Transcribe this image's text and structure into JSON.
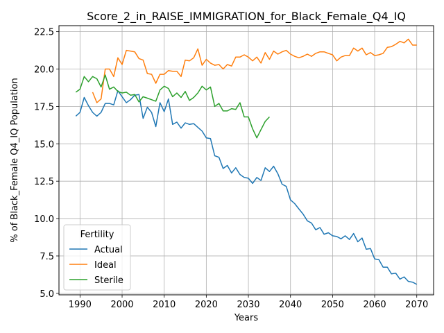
{
  "chart_data": {
    "type": "line",
    "title": "Score_2_in_RAISE_IMMIGRATION_for_Black_Female_Q4_IQ",
    "xlabel": "Years",
    "ylabel": "% of Black_Female Q4_IQ Population",
    "xlim": [
      1985,
      2074
    ],
    "ylim": [
      4.9,
      22.9
    ],
    "xticks": [
      1990,
      2000,
      2010,
      2020,
      2030,
      2040,
      2050,
      2060,
      2070
    ],
    "yticks": [
      5.0,
      7.5,
      10.0,
      12.5,
      15.0,
      17.5,
      20.0,
      22.5
    ],
    "ytick_labels": [
      "5.0",
      "7.5",
      "10.0",
      "12.5",
      "15.0",
      "17.5",
      "20.0",
      "22.5"
    ],
    "grid": true,
    "legend": {
      "title": "Fertility",
      "placement": "lower-left"
    },
    "series": [
      {
        "name": "Actual",
        "color": "#1f77b4",
        "x": [
          1989,
          1990,
          1991,
          1992,
          1993,
          1994,
          1995,
          1996,
          1997,
          1998,
          1999,
          2000,
          2001,
          2002,
          2003,
          2004,
          2005,
          2006,
          2007,
          2008,
          2009,
          2010,
          2011,
          2012,
          2013,
          2014,
          2015,
          2016,
          2017,
          2018,
          2019,
          2020,
          2021,
          2022,
          2023,
          2024,
          2025,
          2026,
          2027,
          2028,
          2029,
          2030,
          2031,
          2032,
          2033,
          2034,
          2035,
          2036,
          2037,
          2038,
          2039,
          2040,
          2041,
          2042,
          2043,
          2044,
          2045,
          2046,
          2047,
          2048,
          2049,
          2050,
          2051,
          2052,
          2053,
          2054,
          2055,
          2056,
          2057,
          2058,
          2059,
          2060,
          2061,
          2062,
          2063,
          2064,
          2065,
          2066,
          2067,
          2068,
          2069,
          2070
        ],
        "values": [
          16.85,
          17.1,
          18.1,
          17.55,
          17.1,
          16.85,
          17.1,
          17.7,
          17.7,
          17.6,
          18.55,
          18.15,
          17.75,
          17.95,
          18.25,
          18.3,
          16.7,
          17.45,
          17.1,
          16.15,
          17.75,
          17.15,
          18.0,
          16.3,
          16.45,
          16.05,
          16.4,
          16.3,
          16.35,
          16.1,
          15.85,
          15.4,
          15.35,
          14.2,
          14.1,
          13.35,
          13.55,
          13.05,
          13.4,
          12.95,
          12.75,
          12.7,
          12.35,
          12.75,
          12.55,
          13.4,
          13.15,
          13.5,
          13.0,
          12.3,
          12.15,
          11.25,
          11.0,
          10.65,
          10.3,
          9.85,
          9.7,
          9.25,
          9.4,
          8.95,
          9.05,
          8.85,
          8.8,
          8.65,
          8.85,
          8.6,
          9.0,
          8.45,
          8.7,
          7.95,
          8.0,
          7.3,
          7.25,
          6.75,
          6.75,
          6.3,
          6.35,
          5.95,
          6.1,
          5.8,
          5.75,
          5.6
        ]
      },
      {
        "name": "Ideal",
        "color": "#ff7f0e",
        "x": [
          1993,
          1994,
          1995,
          1996,
          1997,
          1998,
          1999,
          2000,
          2001,
          2002,
          2003,
          2004,
          2005,
          2006,
          2007,
          2008,
          2009,
          2010,
          2011,
          2012,
          2013,
          2014,
          2015,
          2016,
          2017,
          2018,
          2019,
          2020,
          2021,
          2022,
          2023,
          2024,
          2025,
          2026,
          2027,
          2028,
          2029,
          2030,
          2031,
          2032,
          2033,
          2034,
          2035,
          2036,
          2037,
          2038,
          2039,
          2040,
          2041,
          2042,
          2043,
          2044,
          2045,
          2046,
          2047,
          2048,
          2049,
          2050,
          2051,
          2052,
          2053,
          2054,
          2055,
          2056,
          2057,
          2058,
          2059,
          2060,
          2061,
          2062,
          2063,
          2064,
          2065,
          2066,
          2067,
          2068,
          2069,
          2070
        ],
        "values": [
          18.45,
          17.75,
          18.0,
          20.0,
          20.0,
          19.5,
          20.75,
          20.3,
          21.25,
          21.2,
          21.15,
          20.7,
          20.6,
          19.7,
          19.65,
          19.05,
          19.65,
          19.65,
          19.9,
          19.85,
          19.85,
          19.5,
          20.6,
          20.55,
          20.75,
          21.35,
          20.25,
          20.65,
          20.4,
          20.25,
          20.3,
          20.0,
          20.3,
          20.2,
          20.8,
          20.8,
          20.95,
          20.8,
          20.55,
          20.8,
          20.4,
          21.1,
          20.65,
          21.2,
          21.0,
          21.15,
          21.25,
          21.0,
          20.85,
          20.75,
          20.85,
          21.0,
          20.85,
          21.05,
          21.15,
          21.15,
          21.05,
          20.95,
          20.55,
          20.8,
          20.9,
          20.9,
          21.4,
          21.2,
          21.4,
          20.95,
          21.1,
          20.9,
          20.95,
          21.05,
          21.45,
          21.5,
          21.65,
          21.85,
          21.75,
          22.0,
          21.6,
          21.6
        ]
      },
      {
        "name": "Sterile",
        "color": "#2ca02c",
        "x": [
          1989,
          1990,
          1991,
          1992,
          1993,
          1994,
          1995,
          1996,
          1997,
          1998,
          1999,
          2000,
          2001,
          2002,
          2003,
          2004,
          2005,
          2006,
          2007,
          2008,
          2009,
          2010,
          2011,
          2012,
          2013,
          2014,
          2015,
          2016,
          2017,
          2018,
          2019,
          2020,
          2021,
          2022,
          2023,
          2024,
          2025,
          2026,
          2027,
          2028,
          2029,
          2030,
          2031,
          2032,
          2033,
          2034,
          2035
        ],
        "values": [
          18.45,
          18.65,
          19.5,
          19.15,
          19.5,
          19.35,
          18.8,
          19.6,
          18.65,
          18.8,
          18.5,
          18.4,
          18.45,
          18.25,
          18.3,
          17.8,
          18.15,
          18.05,
          17.95,
          17.85,
          18.6,
          18.85,
          18.7,
          18.15,
          18.4,
          18.1,
          18.5,
          17.9,
          18.1,
          18.4,
          18.85,
          18.6,
          18.8,
          17.5,
          17.7,
          17.2,
          17.2,
          17.35,
          17.3,
          17.75,
          16.8,
          16.8,
          16.0,
          15.4,
          15.95,
          16.5,
          16.8
        ]
      }
    ]
  }
}
